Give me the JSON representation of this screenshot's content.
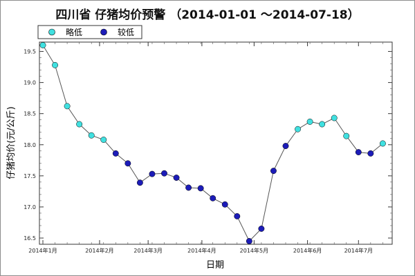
{
  "chart_data": {
    "type": "scatter",
    "title": "四川省 仔猪均价预警 （2014-01-01 ～2014-07-18）",
    "xlabel": "日期",
    "ylabel": "仔猪均价(元/公斤)",
    "ylim": [
      16.4,
      19.65
    ],
    "xlim": [
      0,
      29.3
    ],
    "grid": false,
    "legend_position": "top-left",
    "y_ticks": [
      16.5,
      17.0,
      17.5,
      18.0,
      18.5,
      19.0,
      19.5
    ],
    "y_tick_labels": [
      "16.5",
      "17.0",
      "17.5",
      "18.0",
      "18.5",
      "19.0",
      "19.5"
    ],
    "x_ticks": [
      {
        "x": 0,
        "label": "2014年1月"
      },
      {
        "x": 4.67,
        "label": "2014年2月"
      },
      {
        "x": 8.67,
        "label": "2014年3月"
      },
      {
        "x": 13.1,
        "label": "2014年4月"
      },
      {
        "x": 17.4,
        "label": "2014年5月"
      },
      {
        "x": 21.8,
        "label": "2014年6月"
      },
      {
        "x": 26.0,
        "label": "2014年7月"
      }
    ],
    "series": [
      {
        "name": "略低",
        "color": "#40e0e0"
      },
      {
        "name": "较低",
        "color": "#1c1cb8"
      }
    ],
    "points": [
      {
        "x": 0,
        "y": 19.6,
        "s": 0
      },
      {
        "x": 1,
        "y": 19.28,
        "s": 0
      },
      {
        "x": 2,
        "y": 18.62,
        "s": 0
      },
      {
        "x": 3,
        "y": 18.33,
        "s": 0
      },
      {
        "x": 4,
        "y": 18.15,
        "s": 0
      },
      {
        "x": 5,
        "y": 18.08,
        "s": 0
      },
      {
        "x": 6,
        "y": 17.86,
        "s": 1
      },
      {
        "x": 7,
        "y": 17.7,
        "s": 1
      },
      {
        "x": 8,
        "y": 17.39,
        "s": 1
      },
      {
        "x": 9,
        "y": 17.53,
        "s": 1
      },
      {
        "x": 10,
        "y": 17.54,
        "s": 1
      },
      {
        "x": 11,
        "y": 17.47,
        "s": 1
      },
      {
        "x": 12,
        "y": 17.31,
        "s": 1
      },
      {
        "x": 13,
        "y": 17.3,
        "s": 1
      },
      {
        "x": 14,
        "y": 17.14,
        "s": 1
      },
      {
        "x": 15,
        "y": 17.04,
        "s": 1
      },
      {
        "x": 16,
        "y": 16.85,
        "s": 1
      },
      {
        "x": 17,
        "y": 16.45,
        "s": 1
      },
      {
        "x": 18,
        "y": 16.65,
        "s": 1
      },
      {
        "x": 19,
        "y": 17.58,
        "s": 1
      },
      {
        "x": 20,
        "y": 17.98,
        "s": 1
      },
      {
        "x": 21,
        "y": 18.25,
        "s": 0
      },
      {
        "x": 22,
        "y": 18.37,
        "s": 0
      },
      {
        "x": 23,
        "y": 18.33,
        "s": 0
      },
      {
        "x": 24,
        "y": 18.43,
        "s": 0
      },
      {
        "x": 25,
        "y": 18.14,
        "s": 0
      },
      {
        "x": 26,
        "y": 17.88,
        "s": 1
      },
      {
        "x": 27,
        "y": 17.86,
        "s": 1
      },
      {
        "x": 28,
        "y": 18.02,
        "s": 0
      }
    ]
  }
}
